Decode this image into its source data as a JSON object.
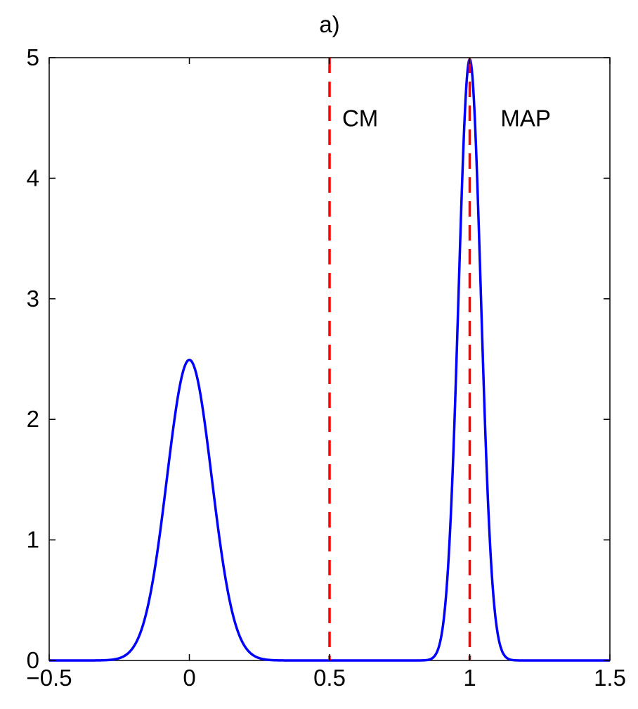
{
  "chart_data": {
    "type": "line",
    "title": "a)",
    "xlabel": "",
    "ylabel": "",
    "xlim": [
      -0.5,
      1.5
    ],
    "ylim": [
      0,
      5
    ],
    "xticks": [
      "−0.5",
      "0",
      "0.5",
      "1",
      "1.5"
    ],
    "xtick_values": [
      -0.5,
      0,
      0.5,
      1,
      1.5
    ],
    "yticks": [
      "0",
      "1",
      "2",
      "3",
      "4",
      "5"
    ],
    "ytick_values": [
      0,
      1,
      2,
      3,
      4,
      5
    ],
    "grid": false,
    "series": [
      {
        "color": "#0000ff",
        "style": "solid",
        "components": [
          {
            "weight": 0.5,
            "mean": 0.0,
            "sigma": 0.08
          },
          {
            "weight": 0.5,
            "mean": 1.0,
            "sigma": 0.04
          }
        ],
        "x_range": [
          -0.5,
          1.5
        ]
      }
    ],
    "vlines": [
      {
        "x": 0.5,
        "color": "#ff0000",
        "style": "dashed"
      },
      {
        "x": 1.0,
        "color": "#ff0000",
        "style": "dashed"
      }
    ],
    "annotations": [
      {
        "text": "CM",
        "x": 0.545,
        "y": 4.5
      },
      {
        "text": "MAP",
        "x": 1.11,
        "y": 4.5
      }
    ]
  }
}
